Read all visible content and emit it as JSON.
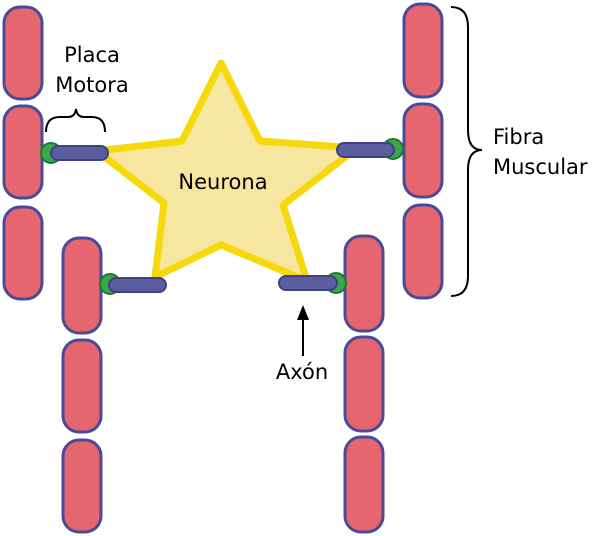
{
  "labels": {
    "neuron": "Neurona",
    "motor_plate_line1": "Placa",
    "motor_plate_line2": "Motora",
    "muscle_fiber_line1": "Fibra",
    "muscle_fiber_line2": "Muscular",
    "axon": "Axón"
  },
  "colors": {
    "muscle_fill": "#e5666e",
    "muscle_stroke": "#4a4a9a",
    "neuron_fill": "#f7e6a0",
    "neuron_stroke": "#f5d90a",
    "axon_fill": "#5b5e9e",
    "axon_stroke": "#3e4180",
    "motor_plate_fill": "#3aa84a",
    "motor_plate_stroke": "#1e7a30"
  }
}
